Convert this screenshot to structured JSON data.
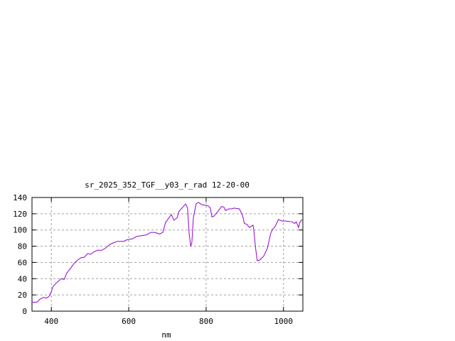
{
  "chart_data": {
    "type": "line",
    "title": "sr_2025_352_TGF__y03_r_rad 12-20-00",
    "xlabel": "nm",
    "ylabel": "",
    "xlim": [
      350,
      1050
    ],
    "ylim": [
      0,
      140
    ],
    "xticks": [
      400,
      600,
      800,
      1000
    ],
    "yticks": [
      0,
      20,
      40,
      60,
      80,
      100,
      120,
      140
    ],
    "grid": true,
    "legend": "none",
    "line_color": "#9400d3",
    "series": [
      {
        "x": [
          350,
          363,
          371,
          380,
          387,
          394,
          400,
          405,
          416,
          426,
          433,
          440,
          450,
          459,
          468,
          477,
          484,
          494,
          501,
          510,
          519,
          530,
          541,
          550,
          560,
          571,
          587,
          596,
          609,
          620,
          633,
          646,
          657,
          668,
          679,
          688,
          695,
          710,
          717,
          725,
          730,
          747,
          752,
          756,
          760,
          763,
          767,
          774,
          780,
          789,
          804,
          811,
          815,
          820,
          829,
          840,
          846,
          850,
          859,
          866,
          872,
          886,
          894,
          899,
          905,
          912,
          921,
          923,
          928,
          932,
          939,
          949,
          958,
          967,
          972,
          978,
          987,
          996,
          1006,
          1022,
          1029,
          1033,
          1039,
          1042,
          1048
        ],
        "y": [
          11,
          11,
          15,
          17,
          16,
          18,
          24,
          31,
          36,
          40,
          39,
          47,
          53,
          59,
          63,
          66,
          66,
          71,
          70,
          73,
          75,
          75,
          78,
          82,
          84,
          86,
          86,
          88,
          89,
          92,
          93,
          94,
          97,
          97,
          95,
          97,
          109,
          119,
          112,
          115,
          123,
          132,
          127,
          96,
          80,
          84,
          115,
          132,
          134,
          131,
          130,
          127,
          116,
          117,
          122,
          129,
          128,
          124,
          126,
          126,
          127,
          126,
          118,
          108,
          107,
          103,
          106,
          101,
          77,
          62,
          63,
          68,
          77,
          96,
          101,
          104,
          113,
          111,
          111,
          110,
          108,
          110,
          103,
          109,
          113
        ]
      }
    ]
  }
}
